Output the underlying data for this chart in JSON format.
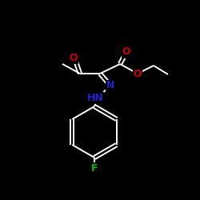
{
  "background_color": "#000000",
  "bond_color": "#ffffff",
  "atom_colors": {
    "O": "#cc0000",
    "N": "#2222cc",
    "F": "#00bb00",
    "C": "#ffffff",
    "H": "#ffffff"
  },
  "figsize": [
    2.5,
    2.5
  ],
  "dpi": 100
}
